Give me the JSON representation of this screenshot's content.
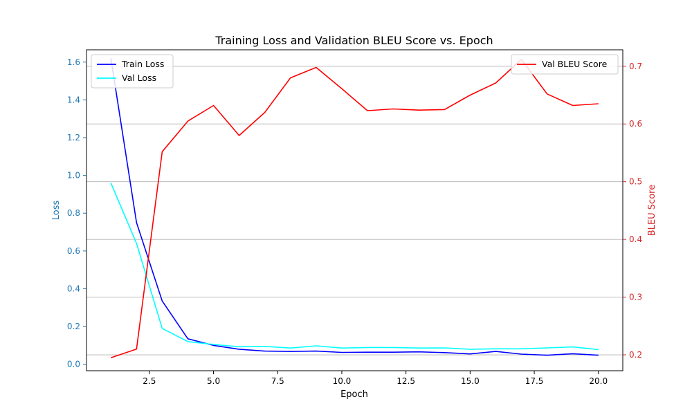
{
  "chart_data": {
    "type": "line",
    "title": "Training Loss and Validation BLEU Score vs. Epoch",
    "xlabel": "Epoch",
    "ylabel_left": "Loss",
    "ylabel_right": "BLEU Score",
    "xlim": [
      0.05,
      20.95
    ],
    "ylim_left": [
      -0.034,
      1.665
    ],
    "ylim_right": [
      0.1725,
      0.7285
    ],
    "xticks": [
      2.5,
      5.0,
      7.5,
      10.0,
      12.5,
      15.0,
      17.5,
      20.0
    ],
    "xtick_labels": [
      "2.5",
      "5.0",
      "7.5",
      "10.0",
      "12.5",
      "15.0",
      "17.5",
      "20.0"
    ],
    "yticks_left": [
      0.0,
      0.2,
      0.4,
      0.6,
      0.8,
      1.0,
      1.2,
      1.4,
      1.6
    ],
    "ytick_labels_left": [
      "0.0",
      "0.2",
      "0.4",
      "0.6",
      "0.8",
      "1.0",
      "1.2",
      "1.4",
      "1.6"
    ],
    "yticks_right": [
      0.2,
      0.3,
      0.4,
      0.5,
      0.6,
      0.7
    ],
    "ytick_labels_right": [
      "0.2",
      "0.3",
      "0.4",
      "0.5",
      "0.6",
      "0.7"
    ],
    "grid": "horizontal lines at right-axis ticks",
    "x": [
      1,
      2,
      3,
      4,
      5,
      6,
      7,
      8,
      9,
      10,
      11,
      12,
      13,
      14,
      15,
      16,
      17,
      18,
      19,
      20
    ],
    "series": [
      {
        "name": "Train Loss",
        "axis": "left",
        "color": "#0000ff",
        "values": [
          1.62,
          0.75,
          0.335,
          0.135,
          0.1,
          0.08,
          0.07,
          0.068,
          0.07,
          0.063,
          0.064,
          0.064,
          0.066,
          0.062,
          0.055,
          0.068,
          0.054,
          0.048,
          0.056,
          0.048
        ]
      },
      {
        "name": "Val Loss",
        "axis": "left",
        "color": "#00ffff",
        "values": [
          0.96,
          0.64,
          0.19,
          0.12,
          0.105,
          0.093,
          0.095,
          0.086,
          0.098,
          0.086,
          0.089,
          0.089,
          0.086,
          0.087,
          0.08,
          0.082,
          0.082,
          0.087,
          0.092,
          0.078
        ]
      },
      {
        "name": "Val BLEU Score",
        "axis": "right",
        "color": "#ff0000",
        "values": [
          0.195,
          0.21,
          0.552,
          0.605,
          0.632,
          0.58,
          0.62,
          0.68,
          0.698,
          0.661,
          0.623,
          0.626,
          0.624,
          0.625,
          0.65,
          0.671,
          0.712,
          0.652,
          0.632,
          0.635
        ]
      }
    ],
    "legend_left": {
      "placement": "upper-left",
      "entries": [
        "Train Loss",
        "Val Loss"
      ]
    },
    "legend_right": {
      "placement": "upper-right",
      "entries": [
        "Val BLEU Score"
      ]
    },
    "colors": {
      "left_axis": "#1f77b4",
      "right_axis": "#d62728",
      "grid": "#b0b0b0"
    }
  }
}
